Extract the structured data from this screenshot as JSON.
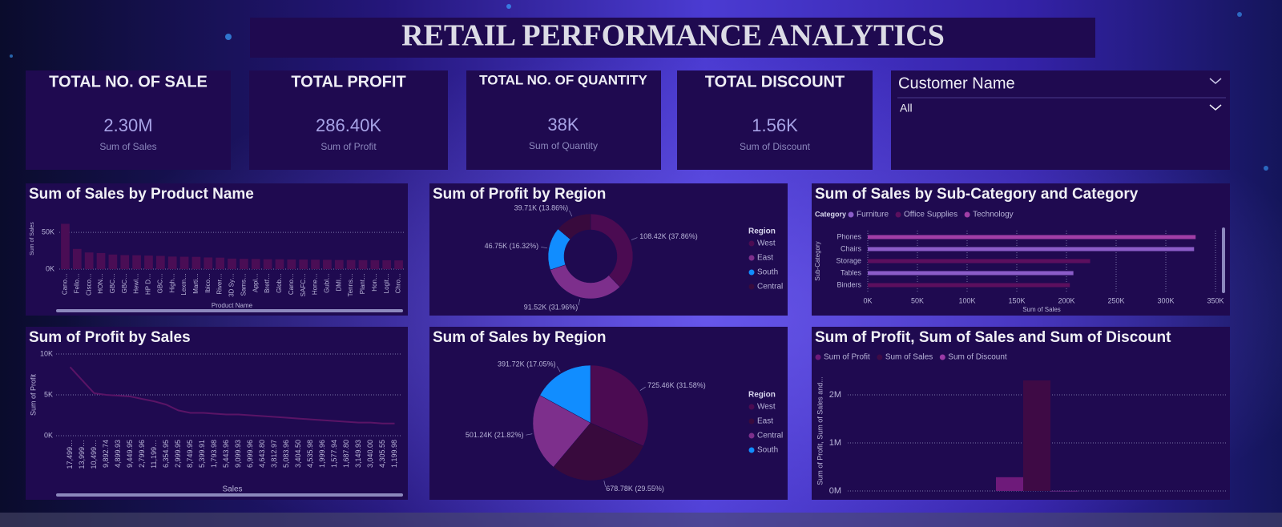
{
  "title": "RETAIL PERFORMANCE ANALYTICS",
  "kpis": [
    {
      "title": "TOTAL NO. OF SALE",
      "value": "2.30M",
      "label": "Sum of Sales"
    },
    {
      "title": "TOTAL PROFIT",
      "value": "286.40K",
      "label": "Sum of Profit"
    },
    {
      "title": "TOTAL NO. OF QUANTITY",
      "value": "38K",
      "label": "Sum of Quantity"
    },
    {
      "title": "TOTAL DISCOUNT",
      "value": "1.56K",
      "label": "Sum of Discount"
    }
  ],
  "slicer": {
    "title": "Customer Name",
    "selected": "All"
  },
  "chart_data": [
    {
      "type": "bar",
      "title": "Sum of Sales by Product Name",
      "x_label": "Product Name",
      "y_label": "Sum of Sales",
      "categories": [
        "Cano…",
        "Fello…",
        "Cisco…",
        "HON…",
        "GBC…",
        "GBC…",
        "Hewl…",
        "HP D…",
        "GBC…",
        "High…",
        "Lexm…",
        "Marti…",
        "Ibico…",
        "River…",
        "3D Sy…",
        "Sams…",
        "Appl…",
        "Bretf…",
        "Glob…",
        "Cano…",
        "SAFC…",
        "Hone…",
        "Gubl…",
        "DMI…",
        "Tenns…",
        "Plant…",
        "Hon…",
        "Logit…",
        "Chro…"
      ],
      "values": [
        61600,
        27450,
        22640,
        21870,
        19820,
        19020,
        18840,
        18370,
        17960,
        17030,
        16830,
        16660,
        15870,
        15610,
        14300,
        13940,
        13760,
        13400,
        13360,
        13120,
        12990,
        12840,
        12630,
        12400,
        12350,
        12200,
        12130,
        12080,
        11860
      ],
      "color": "#4a0d55",
      "ylim": [
        0,
        61000
      ],
      "yticks": [
        {
          "value": 0,
          "label": "0K"
        },
        {
          "value": 50000,
          "label": "50K"
        }
      ],
      "grid": true
    },
    {
      "type": "donut",
      "title": "Sum of Profit by Region",
      "legend_title": "Region",
      "categories": [
        "West",
        "East",
        "South",
        "Central"
      ],
      "values": [
        108420,
        91520,
        46750,
        39710
      ],
      "value_labels": [
        "108.42K (37.86%)",
        "91.52K (31.96%)",
        "46.75K (16.32%)",
        "39.71K (13.86%)"
      ],
      "colors": [
        "#4b0b52",
        "#7d2f8c",
        "#118dff",
        "#380a3d"
      ]
    },
    {
      "type": "hbar",
      "title": "Sum of Sales by Sub-Category and Category",
      "legend_title": "Category",
      "x_label": "Sum of Sales",
      "y_label": "Sub-Category",
      "categories": [
        "Phones",
        "Chairs",
        "Storage",
        "Tables",
        "Binders"
      ],
      "series": [
        {
          "name": "Furniture",
          "color": "#8b5cc8",
          "values": [
            null,
            328450,
            null,
            206970,
            null
          ]
        },
        {
          "name": "Office Supplies",
          "color": "#5c0f5e",
          "values": [
            null,
            null,
            223840,
            null,
            203410
          ]
        },
        {
          "name": "Technology",
          "color": "#a13ea6",
          "values": [
            330010,
            null,
            null,
            null,
            null
          ]
        }
      ],
      "xlim": [
        0,
        350000
      ],
      "xticks": [
        {
          "value": 0,
          "label": "0K"
        },
        {
          "value": 50000,
          "label": "50K"
        },
        {
          "value": 100000,
          "label": "100K"
        },
        {
          "value": 150000,
          "label": "150K"
        },
        {
          "value": 200000,
          "label": "200K"
        },
        {
          "value": 250000,
          "label": "250K"
        },
        {
          "value": 300000,
          "label": "300K"
        },
        {
          "value": 350000,
          "label": "350K"
        }
      ],
      "grid": true
    },
    {
      "type": "line",
      "title": "Sum of Profit by Sales",
      "x_label": "Sales",
      "y_label": "Sum of Profit",
      "categories": [
        "17,499…",
        "13,999…",
        "10,499…",
        "9,892.74",
        "4,899.93",
        "9,449.95",
        "2,799.96",
        "11,199…",
        "6,354.95",
        "2,999.95",
        "8,749.95",
        "5,399.91",
        "1,793.98",
        "5,443.96",
        "9,099.93",
        "6,999.96",
        "4,643.80",
        "3,812.97",
        "5,083.96",
        "3,404.50",
        "4,535.98",
        "1,999.96",
        "1,577.94",
        "1,687.80",
        "3,149.93",
        "3,040.00",
        "4,305.55",
        "1,199.98"
      ],
      "values": [
        8400,
        6800,
        5200,
        5000,
        4900,
        4800,
        4500,
        4200,
        3800,
        3100,
        2800,
        2800,
        2700,
        2600,
        2600,
        2500,
        2400,
        2300,
        2200,
        2100,
        2000,
        1900,
        1800,
        1700,
        1600,
        1600,
        1500,
        1500
      ],
      "color": "#5a1466",
      "ylim": [
        0,
        10000
      ],
      "yticks": [
        {
          "value": 0,
          "label": "0K"
        },
        {
          "value": 5000,
          "label": "5K"
        },
        {
          "value": 10000,
          "label": "10K"
        }
      ],
      "grid": true
    },
    {
      "type": "pie",
      "title": "Sum of Sales by Region",
      "legend_title": "Region",
      "categories": [
        "West",
        "East",
        "Central",
        "South"
      ],
      "values": [
        725460,
        678780,
        501240,
        391720
      ],
      "value_labels": [
        "725.46K (31.58%)",
        "678.78K (29.55%)",
        "501.24K (21.82%)",
        "391.72K (17.05%)"
      ],
      "colors": [
        "#4b0b52",
        "#380a3d",
        "#7d2f8c",
        "#118dff"
      ]
    },
    {
      "type": "grouped_bar",
      "title": "Sum of Profit, Sum of Sales and Sum of Discount",
      "y_label": "Sum of Profit, Sum of Sales and...",
      "categories": [
        null
      ],
      "series": [
        {
          "name": "Sum of Profit",
          "color": "#6e1a7a",
          "values": [
            286400
          ]
        },
        {
          "name": "Sum of Sales",
          "color": "#3e0a45",
          "values": [
            2300000
          ]
        },
        {
          "name": "Sum of Discount",
          "color": "#9a3aa6",
          "values": [
            1560
          ]
        }
      ],
      "ylim": [
        0,
        2500000
      ],
      "yticks": [
        {
          "value": 0,
          "label": "0M"
        },
        {
          "value": 1000000,
          "label": "1M"
        },
        {
          "value": 2000000,
          "label": "2M"
        }
      ],
      "grid": true
    }
  ]
}
